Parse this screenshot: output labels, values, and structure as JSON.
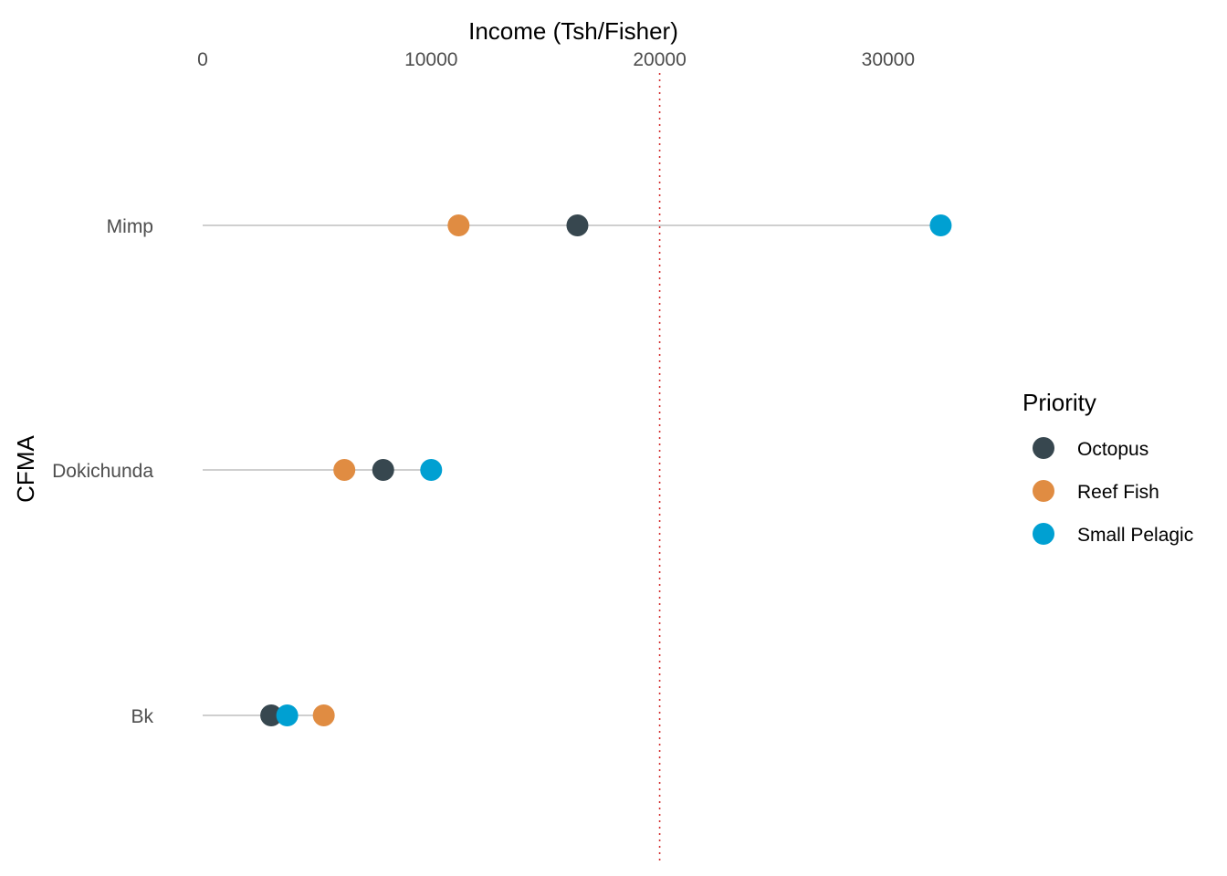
{
  "chart_data": {
    "type": "scatter",
    "title": "",
    "xlabel": "Income (Tsh/Fisher)",
    "ylabel": "CFMA",
    "xlim": [
      0,
      35000
    ],
    "x_ticks": [
      0,
      10000,
      20000,
      30000
    ],
    "x_axis_position": "top",
    "grid": false,
    "categories": [
      "Mimp",
      "Dokichunda",
      "Bk"
    ],
    "series": [
      {
        "name": "Octopus",
        "color": "#37474f",
        "values": [
          16400,
          7900,
          3000
        ]
      },
      {
        "name": "Reef Fish",
        "color": "#e08c42",
        "values": [
          11200,
          6200,
          5300
        ]
      },
      {
        "name": "Small Pelagic",
        "color": "#00a0d2",
        "values": [
          32300,
          10000,
          3700
        ]
      }
    ],
    "reference_line": {
      "x": 20000,
      "style": "dotted",
      "color": "#d32f2f"
    },
    "legend": {
      "title": "Priority",
      "placement": "right"
    }
  }
}
